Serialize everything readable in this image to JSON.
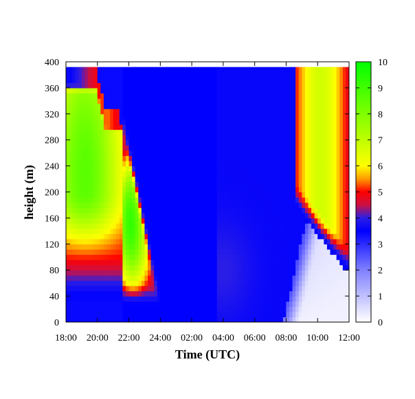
{
  "chart_data": {
    "type": "heatmap",
    "title": "",
    "xlabel": "Time (UTC)",
    "ylabel": "height (m)",
    "x_ticks": [
      "18:00",
      "20:00",
      "22:00",
      "24:00",
      "02:00",
      "04:00",
      "06:00",
      "08:00",
      "10:00",
      "12:00"
    ],
    "y_ticks": [
      "0",
      "40",
      "80",
      "120",
      "160",
      "200",
      "240",
      "280",
      "320",
      "360",
      "400"
    ],
    "colorbar_ticks": [
      "0",
      "1",
      "2",
      "3",
      "4",
      "5",
      "6",
      "7",
      "8",
      "9",
      "10"
    ],
    "x_range_hours_after_1800": [
      0,
      18
    ],
    "y_range_m": [
      0,
      400
    ],
    "data_top_m": 392,
    "colorbar_range": [
      0,
      10
    ],
    "colormap": [
      {
        "value": 0,
        "color": "#ffffff"
      },
      {
        "value": 2,
        "color": "#8080ff"
      },
      {
        "value": 3.5,
        "color": "#0000ff"
      },
      {
        "value": 4,
        "color": "#2a1ee6"
      },
      {
        "value": 4.5,
        "color": "#cc1144"
      },
      {
        "value": 5,
        "color": "#ff0000"
      },
      {
        "value": 5.5,
        "color": "#ff9a00"
      },
      {
        "value": 6,
        "color": "#ffff00"
      },
      {
        "value": 10,
        "color": "#00ff00"
      }
    ],
    "grid": false,
    "legend": "colorbar right"
  }
}
